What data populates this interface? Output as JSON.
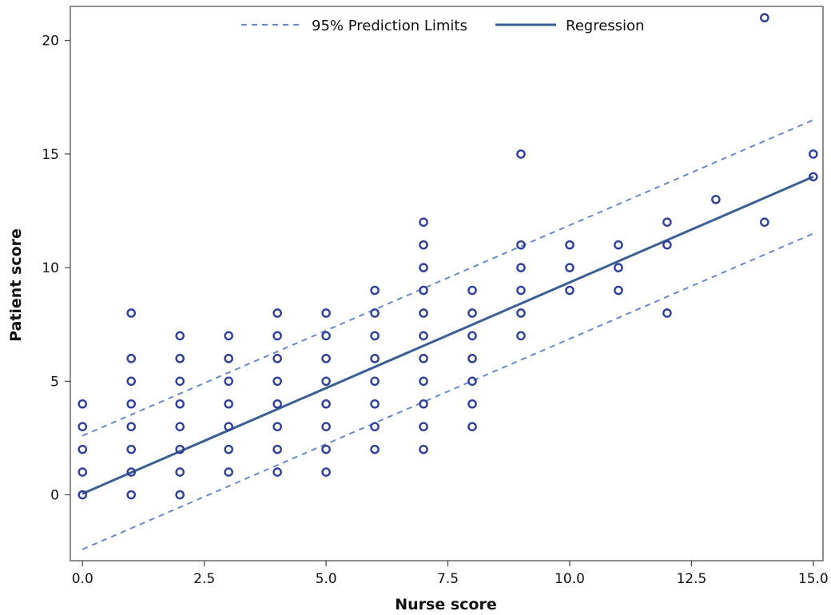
{
  "chart_data": {
    "type": "scatter",
    "xlabel": "Nurse score",
    "ylabel": "Patient score",
    "xlim": [
      -0.25,
      15.2
    ],
    "ylim": [
      -2.9,
      21.5
    ],
    "x_ticks": [
      "0.0",
      "2.5",
      "5.0",
      "7.5",
      "10.0",
      "12.5",
      "15.0"
    ],
    "y_ticks": [
      "0",
      "5",
      "10",
      "15",
      "20"
    ],
    "grid": false,
    "legend_position": "top-center",
    "legend": [
      {
        "label": "95% Prediction Limits",
        "style": "dashed"
      },
      {
        "label": "Regression",
        "style": "solid"
      }
    ],
    "colors": {
      "points": "#2e3f9a",
      "regression": "#3a5f95",
      "limits": "#6688cc"
    },
    "regression": {
      "x": [
        0,
        15
      ],
      "y": [
        0.05,
        14.0
      ]
    },
    "prediction_limits": {
      "upper": {
        "x": [
          0,
          15
        ],
        "y": [
          2.6,
          16.5
        ]
      },
      "lower": {
        "x": [
          0,
          15
        ],
        "y": [
          -2.4,
          11.5
        ]
      }
    },
    "series": [
      {
        "points": [
          [
            0,
            0
          ],
          [
            0,
            1
          ],
          [
            0,
            2
          ],
          [
            0,
            3
          ],
          [
            0,
            4
          ],
          [
            1,
            0
          ],
          [
            1,
            1
          ],
          [
            1,
            2
          ],
          [
            1,
            3
          ],
          [
            1,
            4
          ],
          [
            1,
            5
          ],
          [
            1,
            6
          ],
          [
            1,
            8
          ],
          [
            2,
            0
          ],
          [
            2,
            1
          ],
          [
            2,
            2
          ],
          [
            2,
            3
          ],
          [
            2,
            4
          ],
          [
            2,
            5
          ],
          [
            2,
            6
          ],
          [
            2,
            7
          ],
          [
            3,
            1
          ],
          [
            3,
            2
          ],
          [
            3,
            3
          ],
          [
            3,
            4
          ],
          [
            3,
            5
          ],
          [
            3,
            6
          ],
          [
            3,
            7
          ],
          [
            4,
            1
          ],
          [
            4,
            2
          ],
          [
            4,
            3
          ],
          [
            4,
            4
          ],
          [
            4,
            5
          ],
          [
            4,
            6
          ],
          [
            4,
            7
          ],
          [
            4,
            8
          ],
          [
            5,
            1
          ],
          [
            5,
            2
          ],
          [
            5,
            3
          ],
          [
            5,
            4
          ],
          [
            5,
            5
          ],
          [
            5,
            6
          ],
          [
            5,
            7
          ],
          [
            5,
            8
          ],
          [
            6,
            2
          ],
          [
            6,
            3
          ],
          [
            6,
            4
          ],
          [
            6,
            5
          ],
          [
            6,
            6
          ],
          [
            6,
            7
          ],
          [
            6,
            8
          ],
          [
            6,
            9
          ],
          [
            7,
            2
          ],
          [
            7,
            3
          ],
          [
            7,
            4
          ],
          [
            7,
            5
          ],
          [
            7,
            6
          ],
          [
            7,
            7
          ],
          [
            7,
            8
          ],
          [
            7,
            9
          ],
          [
            7,
            10
          ],
          [
            7,
            11
          ],
          [
            7,
            12
          ],
          [
            8,
            3
          ],
          [
            8,
            4
          ],
          [
            8,
            5
          ],
          [
            8,
            6
          ],
          [
            8,
            7
          ],
          [
            8,
            8
          ],
          [
            8,
            9
          ],
          [
            9,
            7
          ],
          [
            9,
            8
          ],
          [
            9,
            9
          ],
          [
            9,
            10
          ],
          [
            9,
            11
          ],
          [
            9,
            15
          ],
          [
            10,
            9
          ],
          [
            10,
            10
          ],
          [
            10,
            11
          ],
          [
            11,
            9
          ],
          [
            11,
            10
          ],
          [
            11,
            11
          ],
          [
            12,
            8
          ],
          [
            12,
            11
          ],
          [
            12,
            12
          ],
          [
            13,
            13
          ],
          [
            14,
            12
          ],
          [
            14,
            21
          ],
          [
            15,
            14
          ],
          [
            15,
            15
          ]
        ]
      }
    ]
  }
}
